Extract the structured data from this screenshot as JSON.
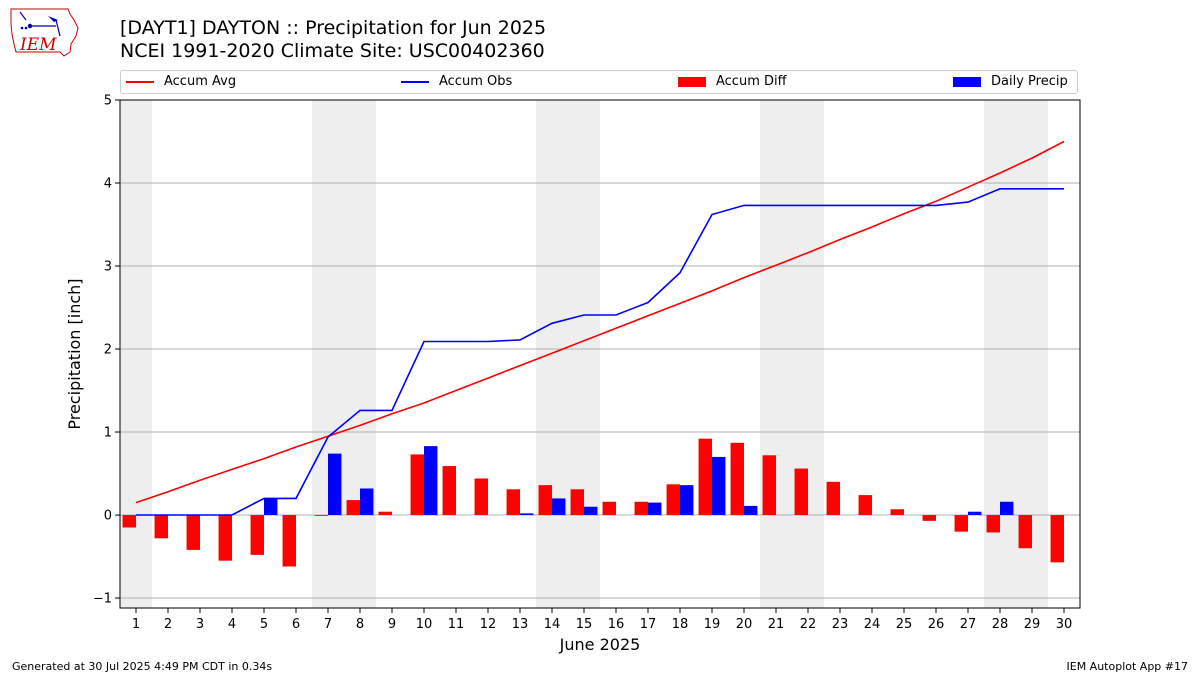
{
  "header": {
    "title_line1": "[DAYT1] DAYTON :: Precipitation for Jun 2025",
    "title_line2": "NCEI 1991-2020 Climate Site: USC00402360"
  },
  "logo": {
    "text": "IEM",
    "icon": "iem-iowa-logo-icon"
  },
  "footer": {
    "left": "Generated at 30 Jul 2025 4:49 PM CDT in 0.34s",
    "right": "IEM Autoplot App #17"
  },
  "colors": {
    "avg": "#ff0000",
    "obs": "#0000ff",
    "diff": "#ff0000",
    "daily": "#0000ff",
    "weekend": "#eeeeee",
    "grid": "#b0b0b0"
  },
  "chart_data": {
    "type": "bar",
    "xlabel": "June 2025",
    "ylabel": "Precipitation [inch]",
    "ylim": [
      -1.12,
      5
    ],
    "yticks": [
      -1,
      0,
      1,
      2,
      3,
      4,
      5
    ],
    "grid": "horizontal",
    "legend_position": "top",
    "x": [
      1,
      2,
      3,
      4,
      5,
      6,
      7,
      8,
      9,
      10,
      11,
      12,
      13,
      14,
      15,
      16,
      17,
      18,
      19,
      20,
      21,
      22,
      23,
      24,
      25,
      26,
      27,
      28,
      29,
      30
    ],
    "weekend_days": [
      1,
      7,
      8,
      14,
      15,
      21,
      22,
      28,
      29
    ],
    "series": [
      {
        "name": "Accum Avg",
        "kind": "line",
        "values": [
          0.15,
          0.28,
          0.42,
          0.55,
          0.68,
          0.82,
          0.95,
          1.08,
          1.22,
          1.35,
          1.5,
          1.65,
          1.8,
          1.95,
          2.1,
          2.25,
          2.4,
          2.55,
          2.7,
          2.86,
          3.01,
          3.16,
          3.32,
          3.47,
          3.63,
          3.78,
          3.95,
          4.12,
          4.3,
          4.5
        ]
      },
      {
        "name": "Accum Obs",
        "kind": "line",
        "values": [
          0,
          0,
          0,
          0,
          0.2,
          0.2,
          0.94,
          1.26,
          1.26,
          2.09,
          2.09,
          2.09,
          2.11,
          2.31,
          2.41,
          2.41,
          2.56,
          2.92,
          3.62,
          3.73,
          3.73,
          3.73,
          3.73,
          3.73,
          3.73,
          3.73,
          3.77,
          3.93,
          3.93,
          3.93
        ]
      },
      {
        "name": "Accum Diff",
        "kind": "bar",
        "values": [
          -0.15,
          -0.28,
          -0.42,
          -0.55,
          -0.48,
          -0.62,
          -0.01,
          0.18,
          0.04,
          0.73,
          0.59,
          0.44,
          0.31,
          0.36,
          0.31,
          0.16,
          0.16,
          0.37,
          0.92,
          0.87,
          0.72,
          0.56,
          0.4,
          0.24,
          0.07,
          -0.07,
          -0.2,
          -0.21,
          -0.4,
          -0.57
        ]
      },
      {
        "name": "Daily Precip",
        "kind": "bar",
        "values": [
          0,
          0,
          0,
          0,
          0.2,
          0,
          0.74,
          0.32,
          0,
          0.83,
          0,
          0,
          0.02,
          0.2,
          0.1,
          0,
          0.15,
          0.36,
          0.7,
          0.11,
          0,
          0,
          0,
          0,
          0,
          0,
          0.04,
          0.16,
          0,
          0
        ]
      }
    ]
  }
}
